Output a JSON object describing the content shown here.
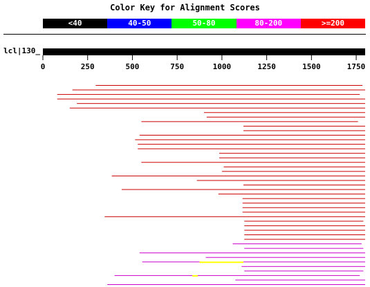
{
  "key": {
    "title": "Color Key for Alignment Scores",
    "segments": [
      {
        "label": "<40",
        "color": "#000000"
      },
      {
        "label": "40-50",
        "color": "#0000ff"
      },
      {
        "label": "50-80",
        "color": "#00ff00"
      },
      {
        "label": "80-200",
        "color": "#ff00ff"
      },
      {
        "label": ">=200",
        "color": "#ff0000"
      }
    ]
  },
  "query": {
    "label": "lcl|130_",
    "length": 1800
  },
  "chart_data": {
    "type": "bar",
    "axis": {
      "min": 0,
      "max": 1800,
      "ticks": [
        0,
        250,
        500,
        750,
        1000,
        1250,
        1500,
        1750
      ]
    },
    "score_colors": {
      ">=200": "#cc0000",
      "80-200": "#cc00cc",
      "50-80": "#ffff00"
    },
    "hits": [
      {
        "segments": [
          {
            "start": 295,
            "end": 1785,
            "score": ">=200"
          }
        ]
      },
      {
        "segments": [
          {
            "start": 165,
            "end": 1800,
            "score": ">=200"
          }
        ]
      },
      {
        "segments": [
          {
            "start": 80,
            "end": 1770,
            "score": ">=200"
          }
        ]
      },
      {
        "segments": [
          {
            "start": 80,
            "end": 1800,
            "score": ">=200"
          }
        ]
      },
      {
        "segments": [
          {
            "start": 190,
            "end": 1800,
            "score": ">=200"
          }
        ]
      },
      {
        "segments": [
          {
            "start": 150,
            "end": 1800,
            "score": ">=200"
          }
        ]
      },
      {
        "segments": [
          {
            "start": 900,
            "end": 1800,
            "score": ">=200"
          }
        ]
      },
      {
        "segments": [
          {
            "start": 915,
            "end": 1800,
            "score": ">=200"
          }
        ]
      },
      {
        "segments": [
          {
            "start": 550,
            "end": 1760,
            "score": ">=200"
          }
        ]
      },
      {
        "segments": [
          {
            "start": 1120,
            "end": 1800,
            "score": ">=200"
          }
        ]
      },
      {
        "segments": [
          {
            "start": 1120,
            "end": 1800,
            "score": ">=200"
          }
        ]
      },
      {
        "segments": [
          {
            "start": 540,
            "end": 1800,
            "score": ">=200"
          }
        ]
      },
      {
        "segments": [
          {
            "start": 515,
            "end": 1800,
            "score": ">=200"
          }
        ]
      },
      {
        "segments": [
          {
            "start": 530,
            "end": 1800,
            "score": ">=200"
          }
        ]
      },
      {
        "segments": [
          {
            "start": 530,
            "end": 1800,
            "score": ">=200"
          }
        ]
      },
      {
        "segments": [
          {
            "start": 985,
            "end": 1800,
            "score": ">=200"
          }
        ]
      },
      {
        "segments": [
          {
            "start": 985,
            "end": 1800,
            "score": ">=200"
          }
        ]
      },
      {
        "segments": [
          {
            "start": 550,
            "end": 1800,
            "score": ">=200"
          }
        ]
      },
      {
        "segments": [
          {
            "start": 1010,
            "end": 1800,
            "score": ">=200"
          }
        ]
      },
      {
        "segments": [
          {
            "start": 1000,
            "end": 1800,
            "score": ">=200"
          }
        ]
      },
      {
        "segments": [
          {
            "start": 385,
            "end": 1800,
            "score": ">=200"
          }
        ]
      },
      {
        "segments": [
          {
            "start": 860,
            "end": 1800,
            "score": ">=200"
          }
        ]
      },
      {
        "segments": [
          {
            "start": 1120,
            "end": 1800,
            "score": ">=200"
          }
        ]
      },
      {
        "segments": [
          {
            "start": 440,
            "end": 1800,
            "score": ">=200"
          }
        ]
      },
      {
        "segments": [
          {
            "start": 980,
            "end": 1800,
            "score": ">=200"
          }
        ]
      },
      {
        "segments": [
          {
            "start": 1115,
            "end": 1800,
            "score": ">=200"
          }
        ]
      },
      {
        "segments": [
          {
            "start": 1115,
            "end": 1800,
            "score": ">=200"
          }
        ]
      },
      {
        "segments": [
          {
            "start": 1115,
            "end": 1800,
            "score": ">=200"
          }
        ]
      },
      {
        "segments": [
          {
            "start": 1115,
            "end": 1800,
            "score": ">=200"
          }
        ]
      },
      {
        "segments": [
          {
            "start": 345,
            "end": 1800,
            "score": ">=200"
          }
        ]
      },
      {
        "segments": [
          {
            "start": 1125,
            "end": 1790,
            "score": ">=200"
          }
        ]
      },
      {
        "segments": [
          {
            "start": 1125,
            "end": 1800,
            "score": ">=200"
          }
        ]
      },
      {
        "segments": [
          {
            "start": 1125,
            "end": 1800,
            "score": ">=200"
          }
        ]
      },
      {
        "segments": [
          {
            "start": 1125,
            "end": 1800,
            "score": ">=200"
          }
        ]
      },
      {
        "segments": [
          {
            "start": 1125,
            "end": 1800,
            "score": ">=200"
          }
        ]
      },
      {
        "segments": [
          {
            "start": 1060,
            "end": 1780,
            "score": "80-200"
          }
        ]
      },
      {
        "segments": [
          {
            "start": 1125,
            "end": 1790,
            "score": "80-200"
          }
        ]
      },
      {
        "segments": [
          {
            "start": 540,
            "end": 1800,
            "score": "80-200"
          }
        ]
      },
      {
        "segments": [
          {
            "start": 910,
            "end": 1800,
            "score": "80-200"
          }
        ]
      },
      {
        "segments": [
          {
            "start": 555,
            "end": 875,
            "score": "80-200"
          },
          {
            "start": 875,
            "end": 1120,
            "score": "50-80"
          },
          {
            "start": 1120,
            "end": 1800,
            "score": "80-200"
          }
        ]
      },
      {
        "segments": [
          {
            "start": 1110,
            "end": 1800,
            "score": "80-200"
          }
        ]
      },
      {
        "segments": [
          {
            "start": 1125,
            "end": 1790,
            "score": "80-200"
          }
        ]
      },
      {
        "segments": [
          {
            "start": 400,
            "end": 835,
            "score": "80-200"
          },
          {
            "start": 835,
            "end": 865,
            "score": "50-80"
          },
          {
            "start": 865,
            "end": 1770,
            "score": "80-200"
          }
        ]
      },
      {
        "segments": [
          {
            "start": 1075,
            "end": 1800,
            "score": "80-200"
          }
        ]
      },
      {
        "segments": [
          {
            "start": 360,
            "end": 1800,
            "score": "80-200"
          }
        ]
      }
    ]
  }
}
